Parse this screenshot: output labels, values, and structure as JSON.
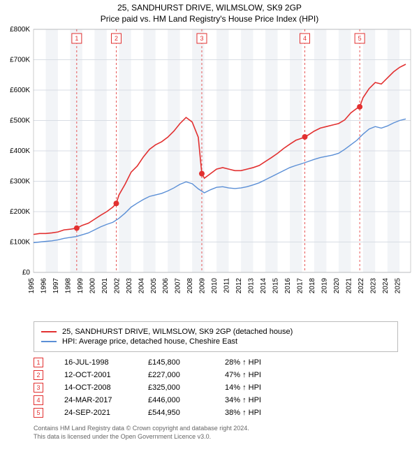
{
  "title_line1": "25, SANDHURST DRIVE, WILMSLOW, SK9 2GP",
  "title_line2": "Price paid vs. HM Land Registry's House Price Index (HPI)",
  "chart": {
    "type": "line",
    "background_color": "#ffffff",
    "plot_bg_colors": [
      "#ffffff",
      "#f2f4f7"
    ],
    "grid_color": "#d8dde4",
    "xlim": [
      1995,
      2025.9
    ],
    "ylim": [
      0,
      800000
    ],
    "ytick_step": 100000,
    "yticks": [
      "£0",
      "£100K",
      "£200K",
      "£300K",
      "£400K",
      "£500K",
      "£600K",
      "£700K",
      "£800K"
    ],
    "xticks": [
      1995,
      1996,
      1997,
      1998,
      1999,
      2000,
      2001,
      2002,
      2003,
      2004,
      2005,
      2006,
      2007,
      2008,
      2009,
      2010,
      2011,
      2012,
      2013,
      2014,
      2015,
      2016,
      2017,
      2018,
      2019,
      2020,
      2021,
      2022,
      2023,
      2024,
      2025
    ],
    "series_red": {
      "label": "25, SANDHURST DRIVE, WILMSLOW, SK9 2GP (detached house)",
      "color": "#e23030",
      "line_width": 1.6,
      "data": [
        [
          1995,
          125000
        ],
        [
          1995.5,
          128000
        ],
        [
          1996,
          128000
        ],
        [
          1996.5,
          130000
        ],
        [
          1997,
          133000
        ],
        [
          1997.5,
          140000
        ],
        [
          1998,
          142000
        ],
        [
          1998.54,
          145800
        ],
        [
          1999,
          155000
        ],
        [
          1999.5,
          162000
        ],
        [
          2000,
          175000
        ],
        [
          2000.5,
          188000
        ],
        [
          2001,
          200000
        ],
        [
          2001.5,
          215000
        ],
        [
          2001.78,
          227000
        ],
        [
          2002,
          255000
        ],
        [
          2002.5,
          290000
        ],
        [
          2003,
          330000
        ],
        [
          2003.5,
          350000
        ],
        [
          2004,
          380000
        ],
        [
          2004.5,
          405000
        ],
        [
          2005,
          420000
        ],
        [
          2005.5,
          430000
        ],
        [
          2006,
          445000
        ],
        [
          2006.5,
          465000
        ],
        [
          2007,
          490000
        ],
        [
          2007.5,
          510000
        ],
        [
          2008,
          495000
        ],
        [
          2008.5,
          445000
        ],
        [
          2008.79,
          325000
        ],
        [
          2009,
          310000
        ],
        [
          2009.5,
          325000
        ],
        [
          2010,
          340000
        ],
        [
          2010.5,
          345000
        ],
        [
          2011,
          340000
        ],
        [
          2011.5,
          335000
        ],
        [
          2012,
          335000
        ],
        [
          2012.5,
          340000
        ],
        [
          2013,
          345000
        ],
        [
          2013.5,
          352000
        ],
        [
          2014,
          365000
        ],
        [
          2014.5,
          378000
        ],
        [
          2015,
          392000
        ],
        [
          2015.5,
          408000
        ],
        [
          2016,
          422000
        ],
        [
          2016.5,
          435000
        ],
        [
          2017,
          442000
        ],
        [
          2017.23,
          446000
        ],
        [
          2017.5,
          452000
        ],
        [
          2018,
          465000
        ],
        [
          2018.5,
          475000
        ],
        [
          2019,
          480000
        ],
        [
          2019.5,
          485000
        ],
        [
          2020,
          490000
        ],
        [
          2020.5,
          502000
        ],
        [
          2021,
          525000
        ],
        [
          2021.5,
          540000
        ],
        [
          2021.73,
          544950
        ],
        [
          2022,
          575000
        ],
        [
          2022.5,
          605000
        ],
        [
          2023,
          625000
        ],
        [
          2023.5,
          620000
        ],
        [
          2024,
          640000
        ],
        [
          2024.5,
          660000
        ],
        [
          2025,
          675000
        ],
        [
          2025.5,
          685000
        ]
      ]
    },
    "series_blue": {
      "label": "HPI: Average price, detached house, Cheshire East",
      "color": "#5b8fd6",
      "line_width": 1.4,
      "data": [
        [
          1995,
          98000
        ],
        [
          1995.5,
          100000
        ],
        [
          1996,
          102000
        ],
        [
          1996.5,
          104000
        ],
        [
          1997,
          107000
        ],
        [
          1997.5,
          112000
        ],
        [
          1998,
          115000
        ],
        [
          1998.5,
          118000
        ],
        [
          1999,
          124000
        ],
        [
          1999.5,
          130000
        ],
        [
          2000,
          140000
        ],
        [
          2000.5,
          150000
        ],
        [
          2001,
          158000
        ],
        [
          2001.5,
          165000
        ],
        [
          2002,
          178000
        ],
        [
          2002.5,
          195000
        ],
        [
          2003,
          215000
        ],
        [
          2003.5,
          228000
        ],
        [
          2004,
          240000
        ],
        [
          2004.5,
          250000
        ],
        [
          2005,
          255000
        ],
        [
          2005.5,
          260000
        ],
        [
          2006,
          268000
        ],
        [
          2006.5,
          278000
        ],
        [
          2007,
          290000
        ],
        [
          2007.5,
          298000
        ],
        [
          2008,
          292000
        ],
        [
          2008.5,
          275000
        ],
        [
          2009,
          262000
        ],
        [
          2009.5,
          272000
        ],
        [
          2010,
          280000
        ],
        [
          2010.5,
          282000
        ],
        [
          2011,
          278000
        ],
        [
          2011.5,
          276000
        ],
        [
          2012,
          278000
        ],
        [
          2012.5,
          282000
        ],
        [
          2013,
          288000
        ],
        [
          2013.5,
          295000
        ],
        [
          2014,
          305000
        ],
        [
          2014.5,
          315000
        ],
        [
          2015,
          325000
        ],
        [
          2015.5,
          335000
        ],
        [
          2016,
          345000
        ],
        [
          2016.5,
          352000
        ],
        [
          2017,
          358000
        ],
        [
          2017.5,
          365000
        ],
        [
          2018,
          372000
        ],
        [
          2018.5,
          378000
        ],
        [
          2019,
          382000
        ],
        [
          2019.5,
          386000
        ],
        [
          2020,
          392000
        ],
        [
          2020.5,
          405000
        ],
        [
          2021,
          420000
        ],
        [
          2021.5,
          435000
        ],
        [
          2022,
          455000
        ],
        [
          2022.5,
          472000
        ],
        [
          2023,
          480000
        ],
        [
          2023.5,
          475000
        ],
        [
          2024,
          482000
        ],
        [
          2024.5,
          492000
        ],
        [
          2025,
          500000
        ],
        [
          2025.5,
          505000
        ]
      ]
    },
    "sale_points": {
      "color": "#e23030",
      "radius": 4,
      "points": [
        {
          "n": "1",
          "x": 1998.54,
          "y": 145800
        },
        {
          "n": "2",
          "x": 2001.78,
          "y": 227000
        },
        {
          "n": "3",
          "x": 2008.79,
          "y": 325000
        },
        {
          "n": "4",
          "x": 2017.23,
          "y": 446000
        },
        {
          "n": "5",
          "x": 2021.73,
          "y": 544950
        }
      ]
    },
    "sale_markers_top": {
      "border_color": "#e23030",
      "text_color": "#e23030",
      "dash_color": "#e23030"
    }
  },
  "legend": {
    "border_color": "#bbbbbb"
  },
  "sales": [
    {
      "n": "1",
      "date": "16-JUL-1998",
      "price": "£145,800",
      "pct": "28% ↑ HPI"
    },
    {
      "n": "2",
      "date": "12-OCT-2001",
      "price": "£227,000",
      "pct": "47% ↑ HPI"
    },
    {
      "n": "3",
      "date": "14-OCT-2008",
      "price": "£325,000",
      "pct": "14% ↑ HPI"
    },
    {
      "n": "4",
      "date": "24-MAR-2017",
      "price": "£446,000",
      "pct": "34% ↑ HPI"
    },
    {
      "n": "5",
      "date": "24-SEP-2021",
      "price": "£544,950",
      "pct": "38% ↑ HPI"
    }
  ],
  "footer_line1": "Contains HM Land Registry data © Crown copyright and database right 2024.",
  "footer_line2": "This data is licensed under the Open Government Licence v3.0."
}
